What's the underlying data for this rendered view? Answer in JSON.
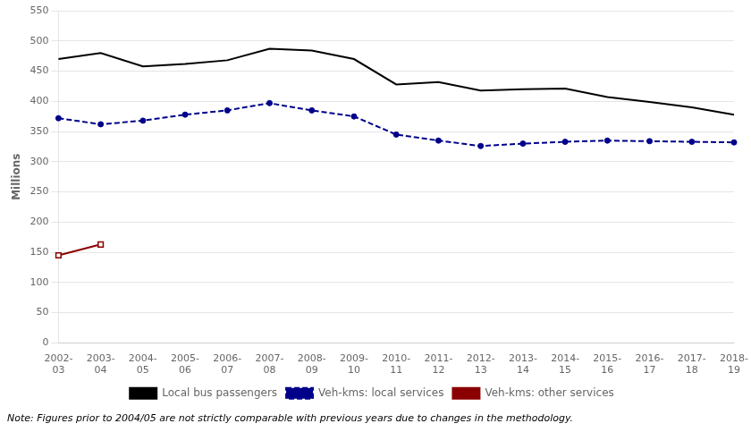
{
  "chart_data": {
    "type": "line",
    "ylabel": "Millions",
    "annotations": [
      "Note: Figures prior to 2004/05 are not strictly comparable with previous years due to changes in the methodology."
    ],
    "categories": [
      "2002-\n03",
      "2003-\n04",
      "2004-\n05",
      "2005-\n06",
      "2006-\n07",
      "2007-\n08",
      "2008-\n09",
      "2009-\n10",
      "2010-\n11",
      "2011-\n12",
      "2012-\n13",
      "2013-\n14",
      "2014-\n15",
      "2015-\n16",
      "2016-\n17",
      "2017-\n18",
      "2018-\n19"
    ],
    "series": [
      {
        "name": "Local bus passengers",
        "color": "#000000",
        "marker": "none",
        "line_style": "solid",
        "values": [
          470,
          480,
          458,
          462,
          468,
          487,
          484,
          470,
          428,
          432,
          418,
          420,
          421,
          407,
          399,
          390,
          378
        ]
      },
      {
        "name": "Veh-kms: local services",
        "color": "#00008B",
        "marker": "circle",
        "line_style": "dashed",
        "values": [
          372,
          362,
          368,
          378,
          385,
          397,
          385,
          375,
          345,
          335,
          326,
          330,
          333,
          335,
          334,
          333,
          332
        ]
      },
      {
        "name": "Veh-kms: other services",
        "color": "#8B0000",
        "marker": "square",
        "line_style": "solid",
        "values": [
          145,
          163,
          null,
          null,
          null,
          null,
          null,
          null,
          null,
          null,
          null,
          null,
          null,
          null,
          null,
          null,
          null
        ]
      }
    ],
    "ylim": [
      0,
      550
    ],
    "yticks": [
      0,
      50,
      100,
      150,
      200,
      250,
      300,
      350,
      400,
      450,
      500,
      550
    ],
    "grid": true,
    "legend": "bottom"
  }
}
